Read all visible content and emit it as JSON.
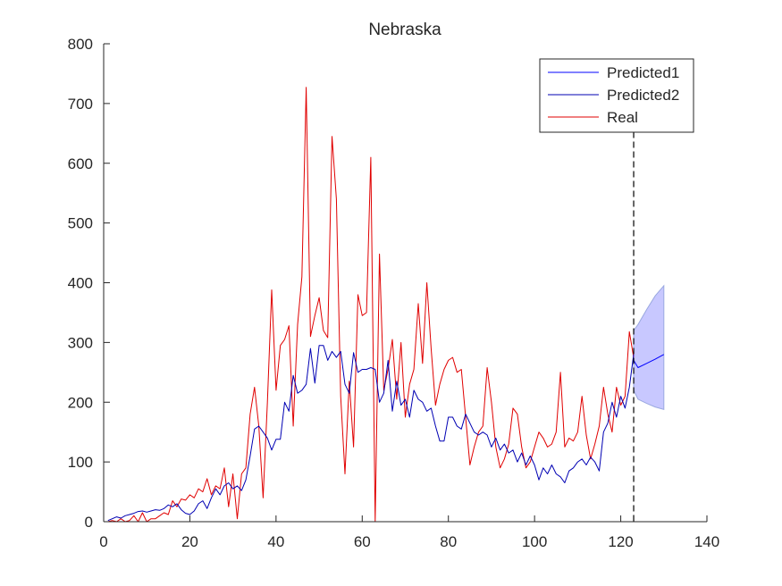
{
  "chart_data": {
    "type": "line",
    "title": "Nebraska",
    "xlabel": "",
    "ylabel": "",
    "xlim": [
      0,
      140
    ],
    "ylim": [
      0,
      800
    ],
    "x_ticks": [
      "0",
      "20",
      "40",
      "60",
      "80",
      "100",
      "120",
      "140"
    ],
    "y_ticks": [
      "0",
      "100",
      "200",
      "300",
      "400",
      "500",
      "600",
      "700",
      "800"
    ],
    "grid": false,
    "legend_position": "top-right",
    "forecast_start_x": 123,
    "colors": {
      "predicted1": "#0000ff",
      "predicted2": "#0000b3",
      "real": "#e00000",
      "band_fill": "#c8c8ff",
      "band_edge": "#9aa8e0",
      "divider": "#000000"
    },
    "series": [
      {
        "name": "Predicted1",
        "key": "predicted1",
        "x": [
          123,
          124,
          126,
          128,
          130
        ],
        "values": [
          270,
          258,
          265,
          272,
          280
        ]
      },
      {
        "name": "Predicted2",
        "key": "predicted2",
        "x": [
          1,
          2,
          3,
          4,
          5,
          6,
          7,
          8,
          9,
          10,
          11,
          12,
          13,
          14,
          15,
          16,
          17,
          18,
          19,
          20,
          21,
          22,
          23,
          24,
          25,
          26,
          27,
          28,
          29,
          30,
          31,
          32,
          33,
          34,
          35,
          36,
          37,
          38,
          39,
          40,
          41,
          42,
          43,
          44,
          45,
          46,
          47,
          48,
          49,
          50,
          51,
          52,
          53,
          54,
          55,
          56,
          57,
          58,
          59,
          60,
          61,
          62,
          63,
          64,
          65,
          66,
          67,
          68,
          69,
          70,
          71,
          72,
          73,
          74,
          75,
          76,
          77,
          78,
          79,
          80,
          81,
          82,
          83,
          84,
          85,
          86,
          87,
          88,
          89,
          90,
          91,
          92,
          93,
          94,
          95,
          96,
          97,
          98,
          99,
          100,
          101,
          102,
          103,
          104,
          105,
          106,
          107,
          108,
          109,
          110,
          111,
          112,
          113,
          114,
          115,
          116,
          117,
          118,
          119,
          120,
          121,
          122,
          123
        ],
        "values": [
          2,
          5,
          8,
          6,
          10,
          12,
          14,
          17,
          18,
          16,
          18,
          20,
          19,
          22,
          28,
          25,
          30,
          20,
          14,
          12,
          18,
          30,
          35,
          22,
          40,
          55,
          45,
          60,
          65,
          55,
          60,
          52,
          70,
          110,
          155,
          160,
          150,
          140,
          120,
          138,
          138,
          200,
          185,
          245,
          215,
          220,
          230,
          290,
          232,
          295,
          295,
          270,
          285,
          275,
          285,
          230,
          215,
          283,
          250,
          255,
          255,
          258,
          255,
          200,
          215,
          270,
          185,
          235,
          195,
          205,
          175,
          220,
          205,
          200,
          185,
          190,
          160,
          135,
          135,
          175,
          175,
          160,
          155,
          180,
          165,
          150,
          145,
          150,
          145,
          125,
          140,
          120,
          130,
          115,
          120,
          100,
          115,
          95,
          110,
          95,
          70,
          90,
          80,
          95,
          80,
          75,
          65,
          85,
          90,
          100,
          105,
          95,
          108,
          100,
          85,
          150,
          165,
          200,
          175,
          210,
          190,
          225,
          280
        ]
      },
      {
        "name": "Real",
        "key": "real",
        "x": [
          1,
          2,
          3,
          4,
          5,
          6,
          7,
          8,
          9,
          10,
          11,
          12,
          13,
          14,
          15,
          16,
          17,
          18,
          19,
          20,
          21,
          22,
          23,
          24,
          25,
          26,
          27,
          28,
          29,
          30,
          31,
          32,
          33,
          34,
          35,
          36,
          37,
          38,
          39,
          40,
          41,
          42,
          43,
          44,
          45,
          46,
          47,
          48,
          49,
          50,
          51,
          52,
          53,
          54,
          55,
          56,
          57,
          58,
          59,
          60,
          61,
          62,
          63,
          64,
          65,
          66,
          67,
          68,
          69,
          70,
          71,
          72,
          73,
          74,
          75,
          76,
          77,
          78,
          79,
          80,
          81,
          82,
          83,
          84,
          85,
          86,
          87,
          88,
          89,
          90,
          91,
          92,
          93,
          94,
          95,
          96,
          97,
          98,
          99,
          100,
          101,
          102,
          103,
          104,
          105,
          106,
          107,
          108,
          109,
          110,
          111,
          112,
          113,
          114,
          115,
          116,
          117,
          118,
          119,
          120,
          121,
          122,
          123
        ],
        "values": [
          0,
          2,
          0,
          5,
          0,
          2,
          10,
          0,
          15,
          0,
          5,
          5,
          10,
          15,
          12,
          35,
          25,
          38,
          36,
          45,
          40,
          55,
          50,
          72,
          45,
          60,
          55,
          90,
          25,
          80,
          5,
          80,
          90,
          180,
          225,
          160,
          40,
          200,
          388,
          220,
          295,
          305,
          328,
          160,
          330,
          410,
          727,
          310,
          345,
          375,
          320,
          308,
          645,
          540,
          210,
          80,
          235,
          125,
          380,
          345,
          350,
          610,
          0,
          448,
          220,
          255,
          305,
          205,
          300,
          175,
          230,
          255,
          365,
          265,
          400,
          290,
          195,
          230,
          255,
          270,
          275,
          250,
          255,
          175,
          95,
          125,
          150,
          160,
          258,
          200,
          125,
          90,
          105,
          130,
          190,
          180,
          125,
          90,
          100,
          125,
          150,
          140,
          125,
          130,
          150,
          250,
          125,
          140,
          135,
          150,
          210,
          145,
          105,
          130,
          160,
          225,
          180,
          150,
          225,
          195,
          210,
          318,
          275
        ]
      }
    ],
    "band": {
      "x": [
        123,
        124,
        126,
        128,
        130
      ],
      "upper": [
        320,
        330,
        355,
        378,
        395
      ],
      "lower": [
        220,
        205,
        198,
        192,
        188
      ]
    }
  }
}
